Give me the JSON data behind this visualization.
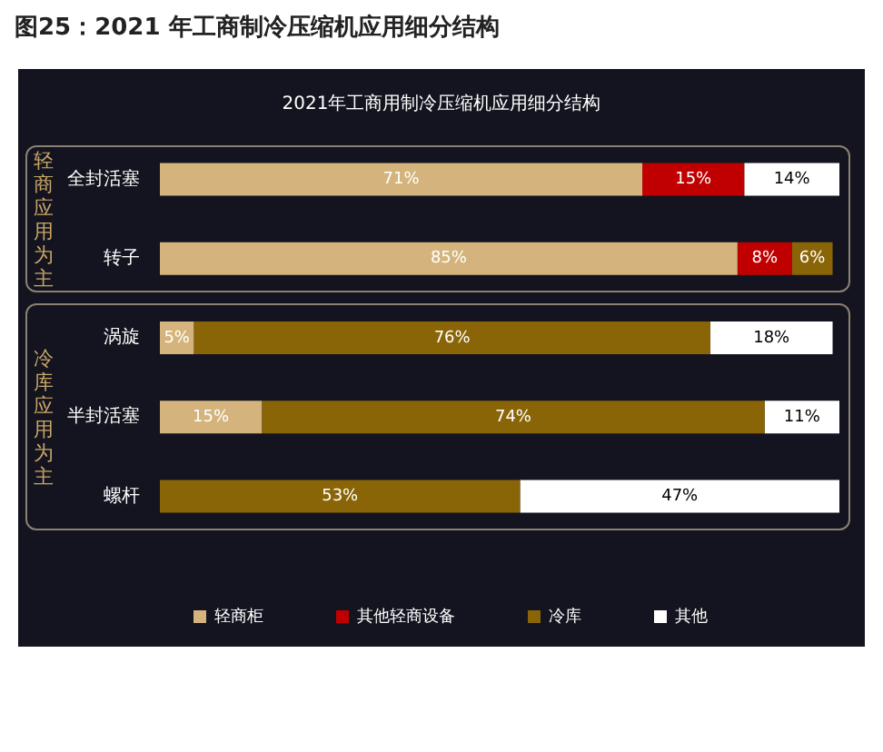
{
  "chart_data": {
    "type": "bar",
    "orientation": "horizontal",
    "stacked": true,
    "title": "图25：2021 年工商制冷压缩机应用细分结构",
    "subtitle": "2021年工商用制冷压缩机应用细分结构",
    "categories": [
      "全封活塞",
      "转子",
      "涡旋",
      "半封活塞",
      "螺杆"
    ],
    "series": [
      {
        "name": "轻商柜",
        "color": "#d4b47c",
        "values": [
          71,
          85,
          5,
          15,
          null
        ],
        "value_labels": [
          "71%",
          "85%",
          "5%",
          "15%",
          null
        ]
      },
      {
        "name": "其他轻商设备",
        "color": "#c00000",
        "values": [
          15,
          8,
          null,
          null,
          null
        ],
        "value_labels": [
          "15%",
          "8%",
          null,
          null,
          null
        ]
      },
      {
        "name": "冷库",
        "color": "#8a6508",
        "values": [
          null,
          6,
          76,
          74,
          53
        ],
        "value_labels": [
          null,
          "6%",
          "76%",
          "74%",
          "53%"
        ]
      },
      {
        "name": "其他",
        "color": "#ffffff",
        "values": [
          14,
          null,
          18,
          11,
          47
        ],
        "value_labels": [
          "14%",
          null,
          "18%",
          "11%",
          "47%"
        ]
      }
    ],
    "xlim": [
      0,
      100
    ],
    "tick_labels": "y",
    "grid": false,
    "legend": "bottom",
    "annotations": [
      "轻商应用为主",
      "冷库应用为主"
    ]
  }
}
